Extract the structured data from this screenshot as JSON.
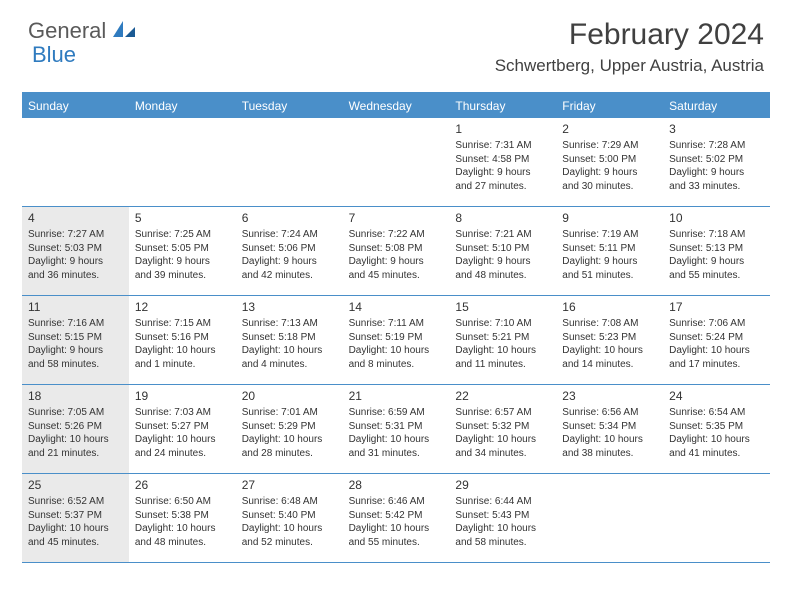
{
  "logo": {
    "text1": "General",
    "text2": "Blue"
  },
  "title": "February 2024",
  "location": "Schwertberg, Upper Austria, Austria",
  "colors": {
    "header_bg": "#4a8fc9",
    "header_text": "#ffffff",
    "shaded_bg": "#eaeaea",
    "text": "#333333",
    "logo_gray": "#5a5a5a",
    "logo_blue": "#2f7bbf"
  },
  "weekdays": [
    "Sunday",
    "Monday",
    "Tuesday",
    "Wednesday",
    "Thursday",
    "Friday",
    "Saturday"
  ],
  "weeks": [
    [
      {
        "day": "",
        "shaded": false,
        "lines": []
      },
      {
        "day": "",
        "shaded": false,
        "lines": []
      },
      {
        "day": "",
        "shaded": false,
        "lines": []
      },
      {
        "day": "",
        "shaded": false,
        "lines": []
      },
      {
        "day": "1",
        "shaded": false,
        "lines": [
          "Sunrise: 7:31 AM",
          "Sunset: 4:58 PM",
          "Daylight: 9 hours",
          "and 27 minutes."
        ]
      },
      {
        "day": "2",
        "shaded": false,
        "lines": [
          "Sunrise: 7:29 AM",
          "Sunset: 5:00 PM",
          "Daylight: 9 hours",
          "and 30 minutes."
        ]
      },
      {
        "day": "3",
        "shaded": false,
        "lines": [
          "Sunrise: 7:28 AM",
          "Sunset: 5:02 PM",
          "Daylight: 9 hours",
          "and 33 minutes."
        ]
      }
    ],
    [
      {
        "day": "4",
        "shaded": true,
        "lines": [
          "Sunrise: 7:27 AM",
          "Sunset: 5:03 PM",
          "Daylight: 9 hours",
          "and 36 minutes."
        ]
      },
      {
        "day": "5",
        "shaded": false,
        "lines": [
          "Sunrise: 7:25 AM",
          "Sunset: 5:05 PM",
          "Daylight: 9 hours",
          "and 39 minutes."
        ]
      },
      {
        "day": "6",
        "shaded": false,
        "lines": [
          "Sunrise: 7:24 AM",
          "Sunset: 5:06 PM",
          "Daylight: 9 hours",
          "and 42 minutes."
        ]
      },
      {
        "day": "7",
        "shaded": false,
        "lines": [
          "Sunrise: 7:22 AM",
          "Sunset: 5:08 PM",
          "Daylight: 9 hours",
          "and 45 minutes."
        ]
      },
      {
        "day": "8",
        "shaded": false,
        "lines": [
          "Sunrise: 7:21 AM",
          "Sunset: 5:10 PM",
          "Daylight: 9 hours",
          "and 48 minutes."
        ]
      },
      {
        "day": "9",
        "shaded": false,
        "lines": [
          "Sunrise: 7:19 AM",
          "Sunset: 5:11 PM",
          "Daylight: 9 hours",
          "and 51 minutes."
        ]
      },
      {
        "day": "10",
        "shaded": false,
        "lines": [
          "Sunrise: 7:18 AM",
          "Sunset: 5:13 PM",
          "Daylight: 9 hours",
          "and 55 minutes."
        ]
      }
    ],
    [
      {
        "day": "11",
        "shaded": true,
        "lines": [
          "Sunrise: 7:16 AM",
          "Sunset: 5:15 PM",
          "Daylight: 9 hours",
          "and 58 minutes."
        ]
      },
      {
        "day": "12",
        "shaded": false,
        "lines": [
          "Sunrise: 7:15 AM",
          "Sunset: 5:16 PM",
          "Daylight: 10 hours",
          "and 1 minute."
        ]
      },
      {
        "day": "13",
        "shaded": false,
        "lines": [
          "Sunrise: 7:13 AM",
          "Sunset: 5:18 PM",
          "Daylight: 10 hours",
          "and 4 minutes."
        ]
      },
      {
        "day": "14",
        "shaded": false,
        "lines": [
          "Sunrise: 7:11 AM",
          "Sunset: 5:19 PM",
          "Daylight: 10 hours",
          "and 8 minutes."
        ]
      },
      {
        "day": "15",
        "shaded": false,
        "lines": [
          "Sunrise: 7:10 AM",
          "Sunset: 5:21 PM",
          "Daylight: 10 hours",
          "and 11 minutes."
        ]
      },
      {
        "day": "16",
        "shaded": false,
        "lines": [
          "Sunrise: 7:08 AM",
          "Sunset: 5:23 PM",
          "Daylight: 10 hours",
          "and 14 minutes."
        ]
      },
      {
        "day": "17",
        "shaded": false,
        "lines": [
          "Sunrise: 7:06 AM",
          "Sunset: 5:24 PM",
          "Daylight: 10 hours",
          "and 17 minutes."
        ]
      }
    ],
    [
      {
        "day": "18",
        "shaded": true,
        "lines": [
          "Sunrise: 7:05 AM",
          "Sunset: 5:26 PM",
          "Daylight: 10 hours",
          "and 21 minutes."
        ]
      },
      {
        "day": "19",
        "shaded": false,
        "lines": [
          "Sunrise: 7:03 AM",
          "Sunset: 5:27 PM",
          "Daylight: 10 hours",
          "and 24 minutes."
        ]
      },
      {
        "day": "20",
        "shaded": false,
        "lines": [
          "Sunrise: 7:01 AM",
          "Sunset: 5:29 PM",
          "Daylight: 10 hours",
          "and 28 minutes."
        ]
      },
      {
        "day": "21",
        "shaded": false,
        "lines": [
          "Sunrise: 6:59 AM",
          "Sunset: 5:31 PM",
          "Daylight: 10 hours",
          "and 31 minutes."
        ]
      },
      {
        "day": "22",
        "shaded": false,
        "lines": [
          "Sunrise: 6:57 AM",
          "Sunset: 5:32 PM",
          "Daylight: 10 hours",
          "and 34 minutes."
        ]
      },
      {
        "day": "23",
        "shaded": false,
        "lines": [
          "Sunrise: 6:56 AM",
          "Sunset: 5:34 PM",
          "Daylight: 10 hours",
          "and 38 minutes."
        ]
      },
      {
        "day": "24",
        "shaded": false,
        "lines": [
          "Sunrise: 6:54 AM",
          "Sunset: 5:35 PM",
          "Daylight: 10 hours",
          "and 41 minutes."
        ]
      }
    ],
    [
      {
        "day": "25",
        "shaded": true,
        "lines": [
          "Sunrise: 6:52 AM",
          "Sunset: 5:37 PM",
          "Daylight: 10 hours",
          "and 45 minutes."
        ]
      },
      {
        "day": "26",
        "shaded": false,
        "lines": [
          "Sunrise: 6:50 AM",
          "Sunset: 5:38 PM",
          "Daylight: 10 hours",
          "and 48 minutes."
        ]
      },
      {
        "day": "27",
        "shaded": false,
        "lines": [
          "Sunrise: 6:48 AM",
          "Sunset: 5:40 PM",
          "Daylight: 10 hours",
          "and 52 minutes."
        ]
      },
      {
        "day": "28",
        "shaded": false,
        "lines": [
          "Sunrise: 6:46 AM",
          "Sunset: 5:42 PM",
          "Daylight: 10 hours",
          "and 55 minutes."
        ]
      },
      {
        "day": "29",
        "shaded": false,
        "lines": [
          "Sunrise: 6:44 AM",
          "Sunset: 5:43 PM",
          "Daylight: 10 hours",
          "and 58 minutes."
        ]
      },
      {
        "day": "",
        "shaded": false,
        "lines": []
      },
      {
        "day": "",
        "shaded": false,
        "lines": []
      }
    ]
  ]
}
